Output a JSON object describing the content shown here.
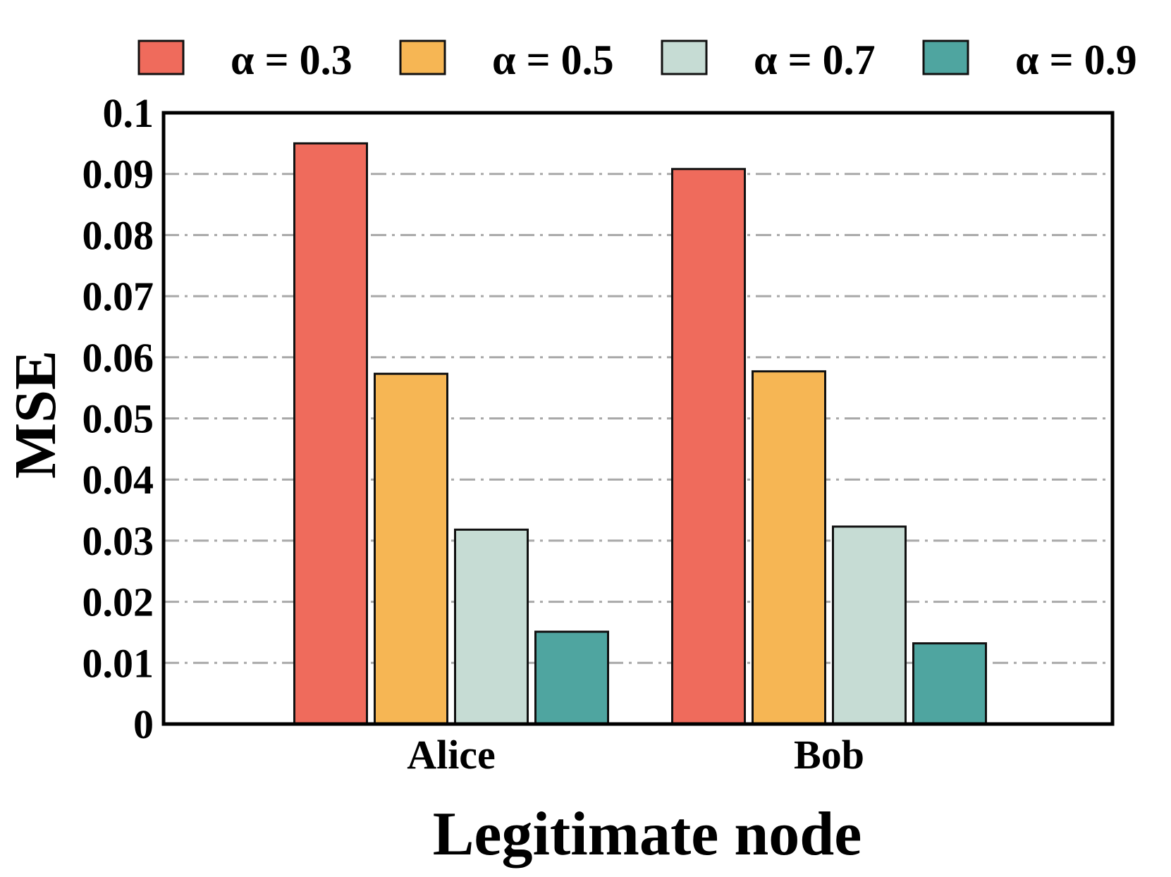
{
  "chart_data": {
    "type": "bar",
    "xlabel": "Legitimate node",
    "ylabel": "MSE",
    "categories": [
      "Alice",
      "Bob"
    ],
    "ylim": [
      0,
      0.1
    ],
    "yticks": [
      "0",
      "0.01",
      "0.02",
      "0.03",
      "0.04",
      "0.05",
      "0.06",
      "0.07",
      "0.08",
      "0.09",
      "0.1"
    ],
    "grid": "horizontal dash-dot",
    "legend_position": "top",
    "series": [
      {
        "name": "α = 0.3",
        "color": "#EF6B5C",
        "values": [
          0.095,
          0.0908
        ]
      },
      {
        "name": "α = 0.5",
        "color": "#F6B654",
        "values": [
          0.0573,
          0.0577
        ]
      },
      {
        "name": "α = 0.7",
        "color": "#C6DCD4",
        "values": [
          0.0318,
          0.0323
        ]
      },
      {
        "name": "α = 0.9",
        "color": "#4FA5A0",
        "values": [
          0.0151,
          0.0132
        ]
      }
    ]
  }
}
